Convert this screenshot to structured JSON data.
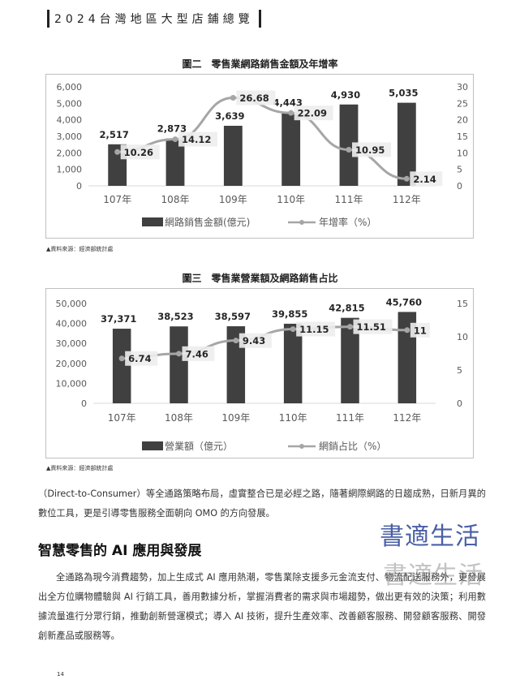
{
  "header": {
    "title": "2024台灣地區大型店鋪總覽"
  },
  "charts": [
    {
      "caption": "圖二　零售業網路銷售金額及年增率",
      "source": "▲資料來源：經濟部統計處",
      "chart_data": {
        "type": "bar",
        "categories": [
          "107年",
          "108年",
          "109年",
          "110年",
          "111年",
          "112年"
        ],
        "series": [
          {
            "name": "網路銷售金額(億元)",
            "type": "bar",
            "axis": "left",
            "values": [
              2517,
              2873,
              3639,
              4443,
              4930,
              5035
            ],
            "labels": [
              "2,517",
              "2,873",
              "3,639",
              "4,443",
              "4,930",
              "5,035"
            ]
          },
          {
            "name": "年增率（%）",
            "type": "line",
            "axis": "right",
            "values": [
              10.26,
              14.12,
              26.68,
              22.09,
              10.95,
              2.14
            ],
            "labels": [
              "10.26",
              "14.12",
              "26.68",
              "22.09",
              "10.95",
              "2.14"
            ]
          }
        ],
        "y_left": {
          "min": 0,
          "max": 6000,
          "ticks": [
            0,
            1000,
            2000,
            3000,
            4000,
            5000,
            6000
          ],
          "tick_labels": [
            "0",
            "1,000",
            "2,000",
            "3,000",
            "4,000",
            "5,000",
            "6,000"
          ]
        },
        "y_right": {
          "min": 0,
          "max": 30,
          "ticks": [
            0,
            5,
            10,
            15,
            20,
            25,
            30
          ],
          "tick_labels": [
            "0",
            "5",
            "10",
            "15",
            "20",
            "25",
            "30"
          ]
        },
        "grid": false,
        "legend": "bottom",
        "colors": {
          "bar": "#404040",
          "line": "#a6a6a6"
        }
      }
    },
    {
      "caption": "圖三　零售業營業額及網路銷售占比",
      "source": "▲資料來源：經濟部統計處",
      "chart_data": {
        "type": "bar",
        "categories": [
          "107年",
          "108年",
          "109年",
          "110年",
          "111年",
          "112年"
        ],
        "series": [
          {
            "name": "營業額（億元）",
            "type": "bar",
            "axis": "left",
            "values": [
              37371,
              38523,
              38597,
              39855,
              42815,
              45760
            ],
            "labels": [
              "37,371",
              "38,523",
              "38,597",
              "39,855",
              "42,815",
              "45,760"
            ]
          },
          {
            "name": "網銷占比（%）",
            "type": "line",
            "axis": "right",
            "values": [
              6.74,
              7.46,
              9.43,
              11.15,
              11.51,
              11
            ],
            "labels": [
              "6.74",
              "7.46",
              "9.43",
              "11.15",
              "11.51",
              "11"
            ]
          }
        ],
        "y_left": {
          "min": 0,
          "max": 50000,
          "ticks": [
            0,
            10000,
            20000,
            30000,
            40000,
            50000
          ],
          "tick_labels": [
            "0",
            "10,000",
            "20,000",
            "30,000",
            "40,000",
            "50,000"
          ]
        },
        "y_right": {
          "min": 0,
          "max": 15,
          "ticks": [
            0,
            5,
            10,
            15
          ],
          "tick_labels": [
            "0",
            "5",
            "10",
            "15"
          ]
        },
        "grid": false,
        "legend": "bottom",
        "colors": {
          "bar": "#404040",
          "line": "#a6a6a6"
        }
      }
    }
  ],
  "article": {
    "para1": "（Direct-to-Consumer）等全通路策略布局，虛實整合已是必經之路，隨著網際網路的日趨成熟，日新月異的數位工具，更是引導零售服務全面朝向 OMO 的方向發展。",
    "heading": "智慧零售的 AI 應用與發展",
    "para2": "全通路為現今消費趨勢，加上生成式 AI 應用熱潮，零售業除支援多元金流支付、物流配送服務外，更發展出全方位購物體驗與 AI 行銷工具，善用數據分析，掌握消費者的需求與市場趨勢，做出更有效的決策；利用數據流量進行分眾行銷，推動創新營運模式；導入 AI 技術，提升生產效率、改善顧客服務、開發顧客服務、開發創新產品或服務等。"
  },
  "watermark": {
    "text": "書適生活"
  },
  "page_number": "14"
}
